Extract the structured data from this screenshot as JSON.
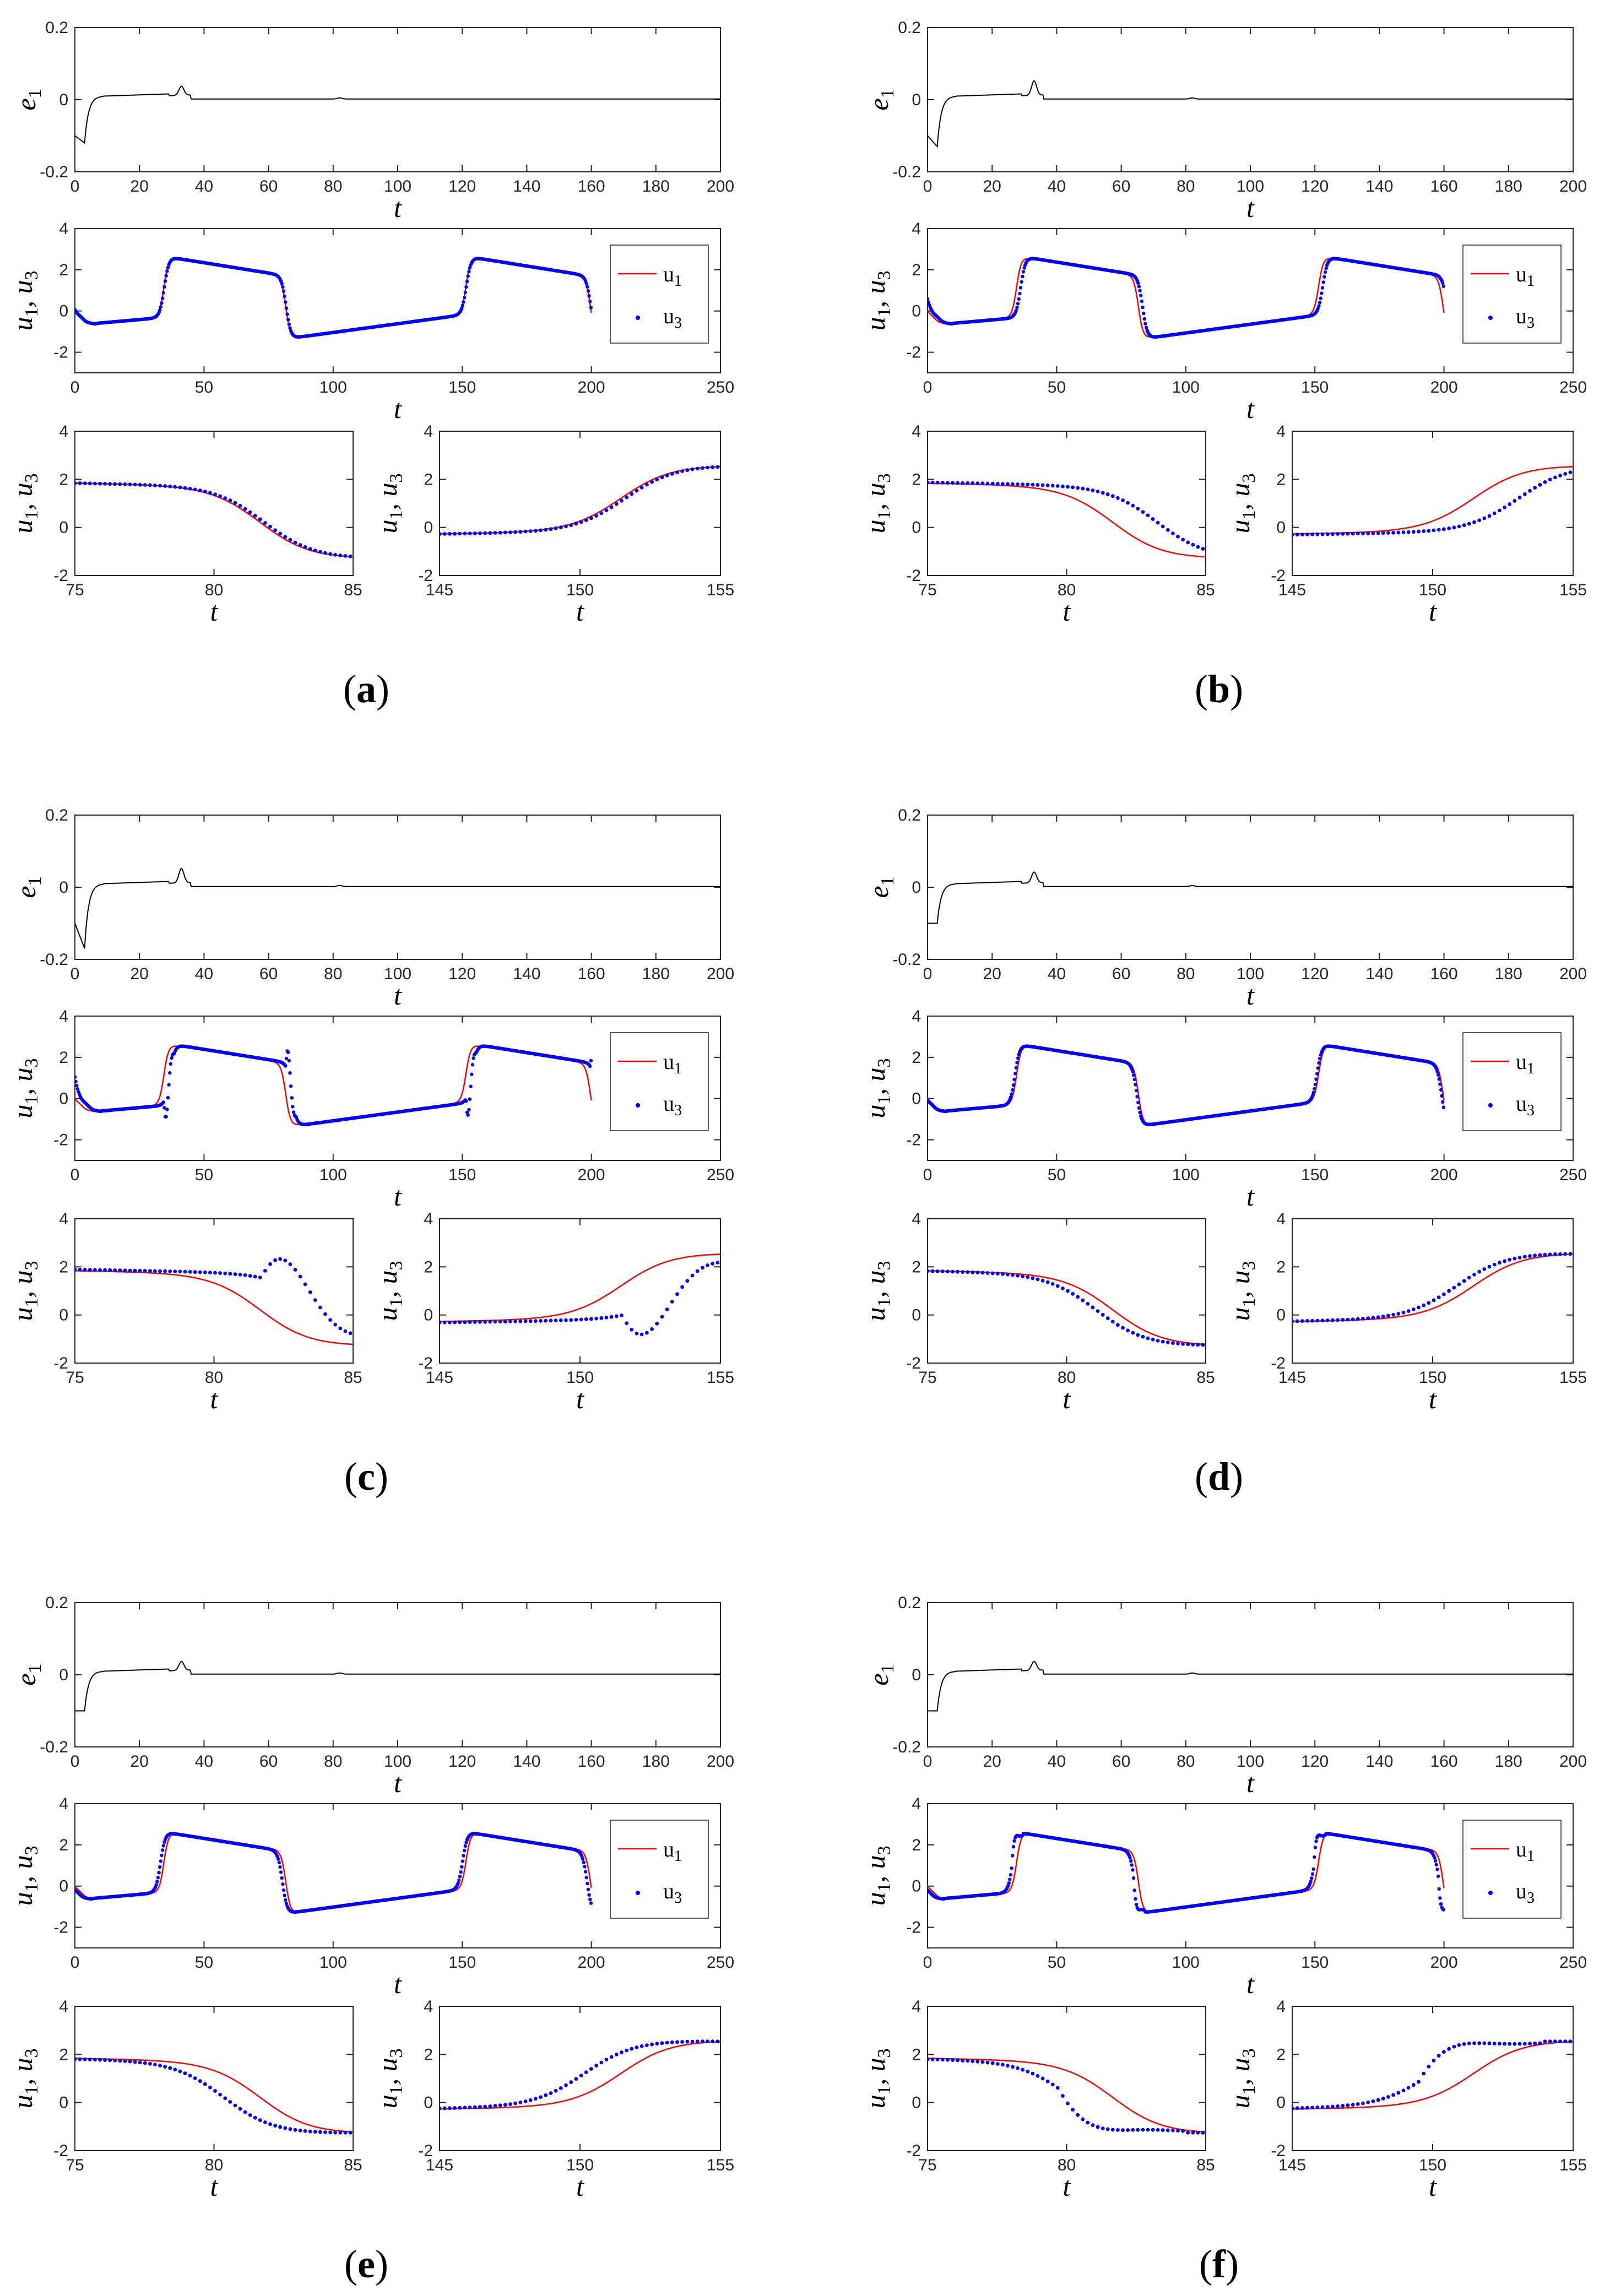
{
  "figure": {
    "panels": [
      {
        "id": "a",
        "label": "a",
        "shift": 0.15,
        "bump": 0.025,
        "min": -0.12,
        "mode": "lag"
      },
      {
        "id": "b",
        "label": "b",
        "shift": 1.6,
        "bump": 0.04,
        "min": -0.13,
        "mode": "lag"
      },
      {
        "id": "c",
        "label": "c",
        "shift": 2.4,
        "bump": 0.04,
        "min": -0.17,
        "mode": "osc"
      },
      {
        "id": "d",
        "label": "d",
        "shift": -0.6,
        "bump": 0.03,
        "min": -0.1,
        "mode": "lead"
      },
      {
        "id": "e",
        "label": "e",
        "shift": -1.3,
        "bump": 0.025,
        "min": -0.1,
        "mode": "lead"
      },
      {
        "id": "f",
        "label": "f",
        "shift": -1.5,
        "bump": 0.025,
        "min": -0.1,
        "mode": "over"
      }
    ],
    "colors": {
      "u1": "#ff0000",
      "u3": "#0000ff",
      "e1": "#000000",
      "axis": "#262626"
    }
  },
  "chart_data": [
    {
      "type": "line",
      "title": "",
      "xlabel": "t",
      "ylabel": "e1",
      "xlim": [
        0,
        200
      ],
      "ylim": [
        -0.2,
        0.2
      ],
      "xticks": [
        0,
        20,
        40,
        60,
        80,
        100,
        120,
        140,
        160,
        180,
        200
      ],
      "yticks": [
        -0.2,
        0,
        0.2
      ],
      "ytick_labels": [
        "-0.2",
        "0",
        "0.2"
      ],
      "series": [
        {
          "name": "e1",
          "description": "synchronization error: dips to a negative minimum near t≈4, settles near 0.01, spike near t≈33, then ≈0"
        }
      ]
    },
    {
      "type": "line",
      "title": "",
      "xlabel": "t",
      "ylabel": "u1, u3",
      "xlim": [
        0,
        250
      ],
      "ylim": [
        -3,
        4
      ],
      "xticks": [
        0,
        50,
        100,
        150,
        200,
        250
      ],
      "yticks": [
        -2,
        0,
        2,
        4
      ],
      "ytick_labels": [
        "-2",
        "0",
        "2",
        "4"
      ],
      "legend": {
        "position": "right",
        "entries": [
          "u1",
          "u3"
        ]
      },
      "series": [
        {
          "name": "u1",
          "style": "red solid line"
        },
        {
          "name": "u3",
          "style": "blue dots"
        }
      ]
    },
    {
      "type": "line",
      "title": "",
      "xlabel": "t",
      "ylabel": "u1, u3",
      "xlim": [
        75,
        85
      ],
      "ylim": [
        -2,
        4
      ],
      "xticks": [
        75,
        80,
        85
      ],
      "yticks": [
        -2,
        0,
        2,
        4
      ],
      "ytick_labels": [
        "-2",
        "0",
        "2",
        "4"
      ],
      "series": [
        {
          "name": "u1"
        },
        {
          "name": "u3"
        }
      ],
      "note": "zoom on falling edge"
    },
    {
      "type": "line",
      "title": "",
      "xlabel": "t",
      "ylabel": "u1, u3",
      "xlim": [
        145,
        155
      ],
      "ylim": [
        -2,
        4
      ],
      "xticks": [
        145,
        150,
        155
      ],
      "yticks": [
        -2,
        0,
        2,
        4
      ],
      "ytick_labels": [
        "-2",
        "0",
        "2",
        "4"
      ],
      "series": [
        {
          "name": "u1"
        },
        {
          "name": "u3"
        }
      ],
      "note": "zoom on rising edge"
    }
  ],
  "text": {
    "t": "t",
    "e": "e",
    "e_sub": "1",
    "u": "u",
    "sub1": "1",
    "sub3": "3",
    "comma": ", ",
    "leg_u": "u",
    "leg_1": "1",
    "leg_3": "3",
    "paren_open": "(",
    "paren_close": ")"
  }
}
